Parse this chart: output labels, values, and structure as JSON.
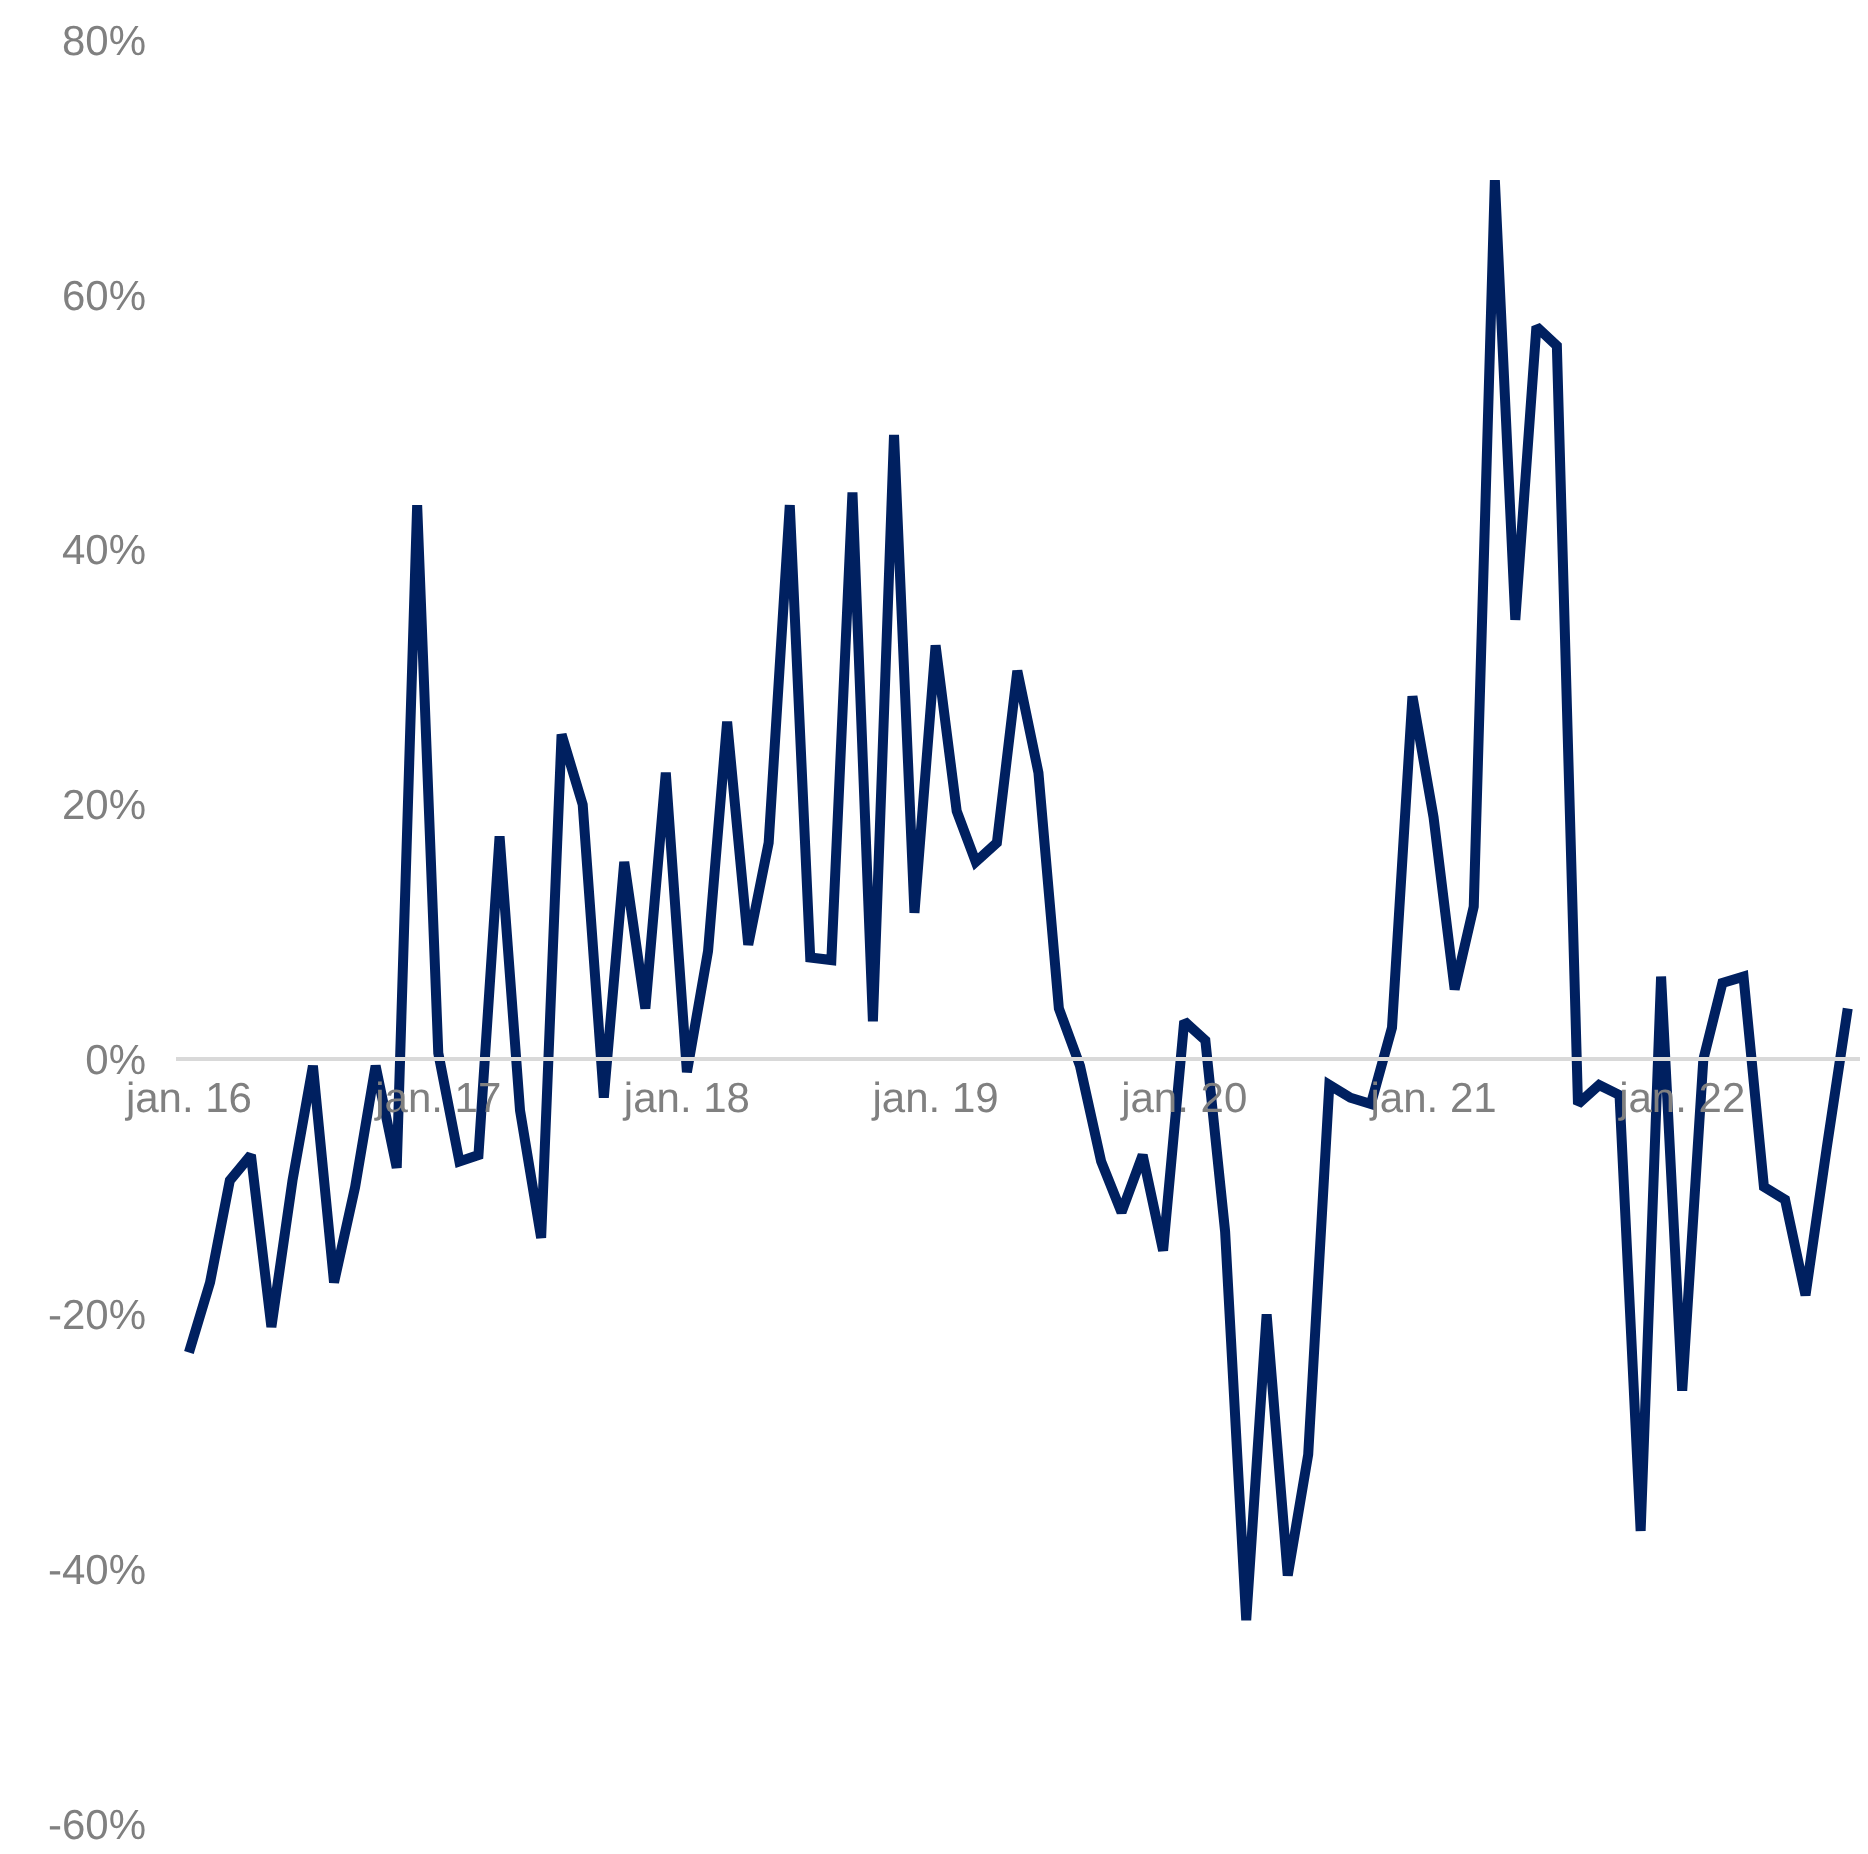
{
  "chart_data": {
    "type": "line",
    "x": [
      "2016-01",
      "2016-02",
      "2016-03",
      "2016-04",
      "2016-05",
      "2016-06",
      "2016-07",
      "2016-08",
      "2016-09",
      "2016-10",
      "2016-11",
      "2016-12",
      "2017-01",
      "2017-02",
      "2017-03",
      "2017-04",
      "2017-05",
      "2017-06",
      "2017-07",
      "2017-08",
      "2017-09",
      "2017-10",
      "2017-11",
      "2017-12",
      "2018-01",
      "2018-02",
      "2018-03",
      "2018-04",
      "2018-05",
      "2018-06",
      "2018-07",
      "2018-08",
      "2018-09",
      "2018-10",
      "2018-11",
      "2018-12",
      "2019-01",
      "2019-02",
      "2019-03",
      "2019-04",
      "2019-05",
      "2019-06",
      "2019-07",
      "2019-08",
      "2019-09",
      "2019-10",
      "2019-11",
      "2019-12",
      "2020-01",
      "2020-02",
      "2020-03",
      "2020-04",
      "2020-05",
      "2020-06",
      "2020-07",
      "2020-08",
      "2020-09",
      "2020-10",
      "2020-11",
      "2020-12",
      "2021-01",
      "2021-02",
      "2021-03",
      "2021-04",
      "2021-05",
      "2021-06",
      "2021-07",
      "2021-08",
      "2021-09",
      "2021-10",
      "2021-11",
      "2021-12",
      "2022-01",
      "2022-02",
      "2022-03",
      "2022-04",
      "2022-05",
      "2022-06",
      "2022-07",
      "2022-08",
      "2022-09"
    ],
    "series": [
      {
        "color": "#002060",
        "values": [
          -23,
          -17.5,
          -9.5,
          -7.5,
          -21,
          -9.5,
          -0.5,
          -17.5,
          -10,
          -0.5,
          -8.5,
          43.5,
          0.5,
          -8,
          -7.5,
          17.5,
          -4,
          -14,
          25.5,
          20,
          -3,
          15.5,
          4,
          22.5,
          -1,
          8.5,
          26.5,
          9,
          17,
          43.5,
          8,
          7.8,
          44.5,
          3,
          49,
          11.5,
          32.5,
          19.5,
          15.5,
          17,
          30.5,
          22.5,
          4,
          -0.5,
          -8,
          -12,
          -7.5,
          -15,
          3,
          1.5,
          -13.5,
          -44,
          -20,
          -40.5,
          -31,
          -2,
          -3,
          -3.5,
          2.5,
          28.5,
          19,
          5.5,
          12,
          69,
          34.5,
          57.5,
          56,
          -3.5,
          -2,
          -2.8,
          -37,
          6.5,
          -26,
          0,
          6,
          6.5,
          -10,
          -11,
          -18.5,
          -7,
          4
        ]
      }
    ],
    "xlim": [
      "2015-12-13",
      "2022-09-19"
    ],
    "xticks": [
      {
        "value": "2016-01",
        "label": "jan. 16"
      },
      {
        "value": "2017-01",
        "label": "jan. 17"
      },
      {
        "value": "2018-01",
        "label": "jan. 18"
      },
      {
        "value": "2019-01",
        "label": "jan. 19"
      },
      {
        "value": "2020-01",
        "label": "jan. 20"
      },
      {
        "value": "2021-01",
        "label": "jan. 21"
      },
      {
        "value": "2022-01",
        "label": "jan. 22"
      }
    ],
    "ylim": [
      -60,
      80
    ],
    "yticks": [
      {
        "value": -60,
        "label": "-60%"
      },
      {
        "value": -40,
        "label": "-40%"
      },
      {
        "value": -20,
        "label": "-20%"
      },
      {
        "value": 0,
        "label": "0%"
      },
      {
        "value": 20,
        "label": "20%"
      },
      {
        "value": 40,
        "label": "40%"
      },
      {
        "value": 60,
        "label": "60%"
      },
      {
        "value": 80,
        "label": "80%"
      }
    ],
    "marker": "none",
    "line_style": "solid"
  }
}
